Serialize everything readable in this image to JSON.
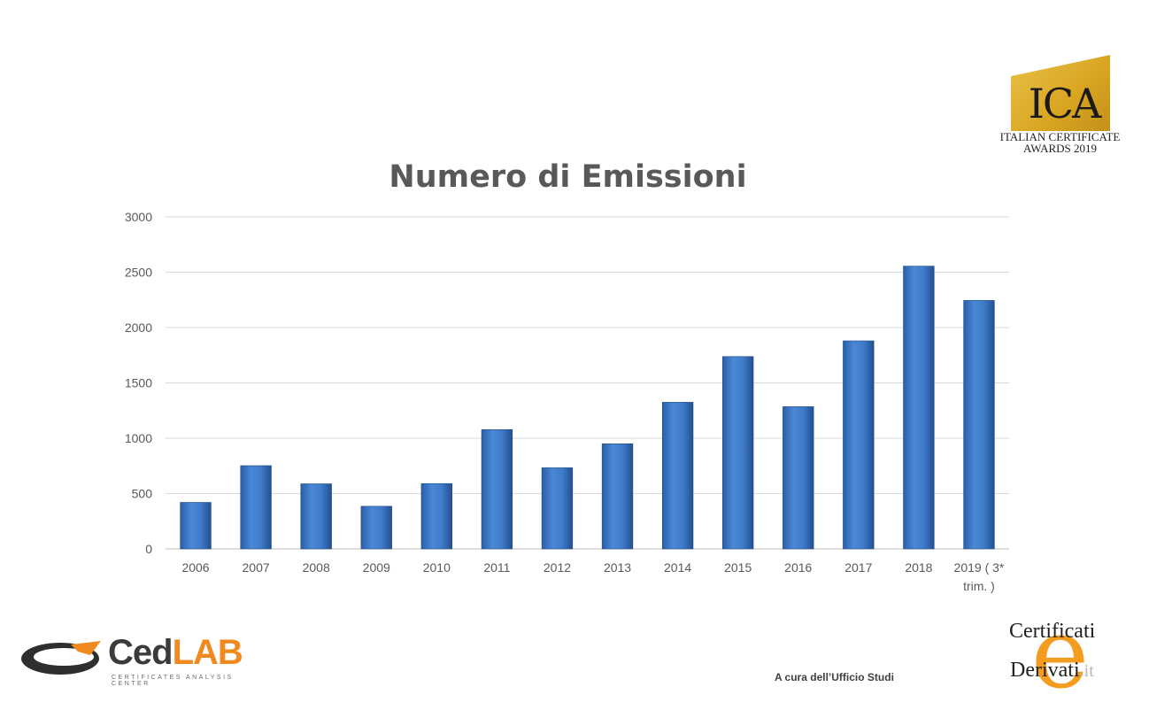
{
  "chart_data": {
    "type": "bar",
    "title": "Numero di Emissioni",
    "categories": [
      "2006",
      "2007",
      "2008",
      "2009",
      "2010",
      "2011",
      "2012",
      "2013",
      "2014",
      "2015",
      "2016",
      "2017",
      "2018",
      "2019 ( 3* trim. )"
    ],
    "category_lines": [
      [
        "2006"
      ],
      [
        "2007"
      ],
      [
        "2008"
      ],
      [
        "2009"
      ],
      [
        "2010"
      ],
      [
        "2011"
      ],
      [
        "2012"
      ],
      [
        "2013"
      ],
      [
        "2014"
      ],
      [
        "2015"
      ],
      [
        "2016"
      ],
      [
        "2017"
      ],
      [
        "2018"
      ],
      [
        "2019 ( 3*",
        "trim. )"
      ]
    ],
    "values": [
      420,
      752,
      588,
      385,
      590,
      1078,
      733,
      950,
      1325,
      1738,
      1285,
      1880,
      2555,
      2245
    ],
    "ylim": [
      0,
      3000
    ],
    "yticks": [
      "0",
      "500",
      "1000",
      "1500",
      "2000",
      "2500",
      "3000"
    ],
    "grid": true,
    "bar_color": "#3a75c4"
  },
  "logos": {
    "ica": {
      "main": "ICA",
      "line1": "ITALIAN CERTIFICATE",
      "line2": "AWARDS 2019"
    },
    "cedlab": {
      "ced": "Ced",
      "lab": "LAB",
      "tagline": "CERTIFICATES ANALYSIS CENTER"
    },
    "cd": {
      "e": "e",
      "line1": "Certificati",
      "line2": "Derivati",
      "suffix": ".it"
    }
  },
  "footer": {
    "note": "A cura dell’Ufficio Studi"
  }
}
